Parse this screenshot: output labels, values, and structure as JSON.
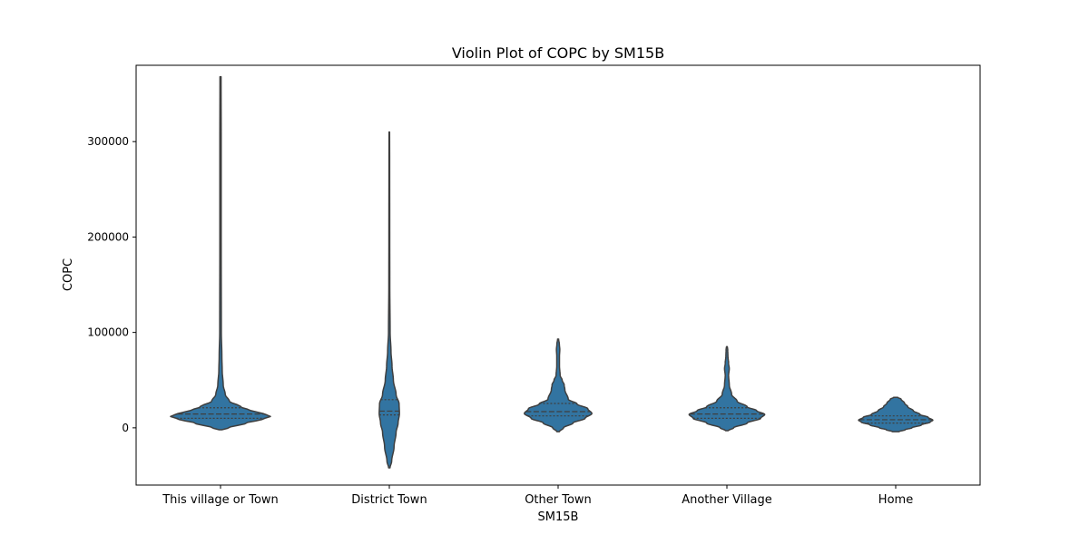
{
  "chart_data": {
    "type": "violin",
    "title": "Violin Plot of COPC by SM15B",
    "xlabel": "SM15B",
    "ylabel": "COPC",
    "ylim": [
      -60000,
      380000
    ],
    "yticks": [
      0,
      100000,
      200000,
      300000
    ],
    "ytick_labels": [
      "0",
      "100000",
      "200000",
      "300000"
    ],
    "grid": false,
    "color": "#3274a1",
    "edge_color": "#3f3f3f",
    "categories": [
      "This village or Town",
      "District Town",
      "Other Town",
      "Another Village",
      "Home"
    ],
    "violins": [
      {
        "category": "This village or Town",
        "quartiles": [
          10000,
          14500,
          21000
        ],
        "profile": [
          [
            -2000,
            0.02
          ],
          [
            0,
            0.12
          ],
          [
            5000,
            0.38
          ],
          [
            9000,
            0.62
          ],
          [
            12000,
            0.74
          ],
          [
            15000,
            0.63
          ],
          [
            18000,
            0.45
          ],
          [
            22000,
            0.3
          ],
          [
            28000,
            0.13
          ],
          [
            35000,
            0.07
          ],
          [
            45000,
            0.04
          ],
          [
            60000,
            0.025
          ],
          [
            75000,
            0.02
          ],
          [
            100000,
            0.012
          ],
          [
            200000,
            0.01
          ],
          [
            300000,
            0.01
          ],
          [
            368000,
            0.008
          ]
        ]
      },
      {
        "category": "District Town",
        "quartiles": [
          13500,
          17500,
          29500
        ],
        "profile": [
          [
            -42000,
            0.01
          ],
          [
            -35000,
            0.035
          ],
          [
            -20000,
            0.07
          ],
          [
            -5000,
            0.1
          ],
          [
            5000,
            0.13
          ],
          [
            15000,
            0.15
          ],
          [
            25000,
            0.145
          ],
          [
            35000,
            0.1
          ],
          [
            50000,
            0.06
          ],
          [
            65000,
            0.04
          ],
          [
            80000,
            0.025
          ],
          [
            100000,
            0.012
          ],
          [
            150000,
            0.007
          ],
          [
            200000,
            0.006
          ],
          [
            280000,
            0.005
          ],
          [
            310000,
            0.004
          ]
        ]
      },
      {
        "category": "Other Town",
        "quartiles": [
          12500,
          17000,
          25500
        ],
        "profile": [
          [
            -4000,
            0.02
          ],
          [
            0,
            0.08
          ],
          [
            5000,
            0.22
          ],
          [
            10000,
            0.4
          ],
          [
            15000,
            0.5
          ],
          [
            20000,
            0.44
          ],
          [
            25000,
            0.28
          ],
          [
            30000,
            0.15
          ],
          [
            40000,
            0.1
          ],
          [
            45000,
            0.09
          ],
          [
            50000,
            0.06
          ],
          [
            55000,
            0.03
          ],
          [
            65000,
            0.02
          ],
          [
            75000,
            0.02
          ],
          [
            82000,
            0.025
          ],
          [
            88000,
            0.018
          ],
          [
            93000,
            0.008
          ]
        ]
      },
      {
        "category": "Another Village",
        "quartiles": [
          10000,
          14500,
          21000
        ],
        "profile": [
          [
            -3000,
            0.02
          ],
          [
            0,
            0.1
          ],
          [
            5000,
            0.3
          ],
          [
            10000,
            0.5
          ],
          [
            14000,
            0.56
          ],
          [
            18000,
            0.44
          ],
          [
            22000,
            0.3
          ],
          [
            28000,
            0.15
          ],
          [
            35000,
            0.07
          ],
          [
            45000,
            0.035
          ],
          [
            55000,
            0.025
          ],
          [
            62000,
            0.035
          ],
          [
            68000,
            0.025
          ],
          [
            75000,
            0.015
          ],
          [
            82000,
            0.012
          ],
          [
            85000,
            0.006
          ]
        ]
      },
      {
        "category": "Home",
        "quartiles": [
          5000,
          8500,
          12500
        ],
        "profile": [
          [
            -4000,
            0.05
          ],
          [
            -2000,
            0.14
          ],
          [
            0,
            0.24
          ],
          [
            3000,
            0.38
          ],
          [
            6000,
            0.51
          ],
          [
            8000,
            0.55
          ],
          [
            11000,
            0.48
          ],
          [
            14000,
            0.36
          ],
          [
            18000,
            0.26
          ],
          [
            22000,
            0.18
          ],
          [
            26000,
            0.13
          ],
          [
            30000,
            0.08
          ],
          [
            32000,
            0.03
          ]
        ]
      }
    ]
  }
}
